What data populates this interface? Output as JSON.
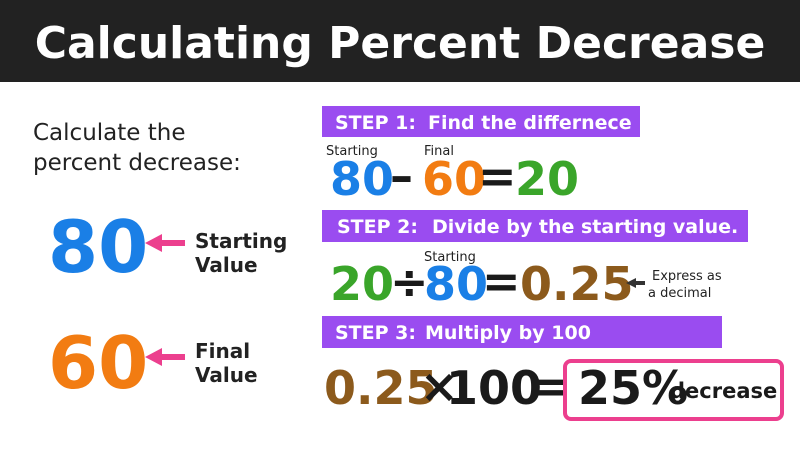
{
  "header": {
    "title": "Calculating Percent Decrease"
  },
  "prompt": {
    "lines": [
      "Calculate the",
      "percent decrease:"
    ]
  },
  "givens": [
    {
      "value": "80",
      "label_lines": [
        "Starting",
        "Value"
      ]
    },
    {
      "value": "60",
      "label_lines": [
        "Final",
        "Value"
      ]
    }
  ],
  "steps": [
    {
      "label": "STEP 1:",
      "text": "Find the differnece",
      "terms": [
        {
          "caption": "Starting",
          "text": "80"
        },
        {
          "text": "–"
        },
        {
          "caption": "Final",
          "text": "60"
        },
        {
          "text": "="
        },
        {
          "text": "20"
        }
      ]
    },
    {
      "label": "STEP 2:",
      "text": "Divide by the starting value.",
      "terms": [
        {
          "text": "20"
        },
        {
          "text": "÷"
        },
        {
          "caption": "Starting",
          "text": "80"
        },
        {
          "text": "="
        },
        {
          "text": "0.25"
        }
      ],
      "note_lines": [
        "Express as",
        "a decimal"
      ]
    },
    {
      "label": "STEP 3:",
      "text": "Multiply by 100",
      "terms": [
        {
          "text": "0.25"
        },
        {
          "text": "×"
        },
        {
          "text": "100"
        },
        {
          "text": "="
        }
      ],
      "result": {
        "value": "25%",
        "word": "decrease"
      }
    }
  ]
}
